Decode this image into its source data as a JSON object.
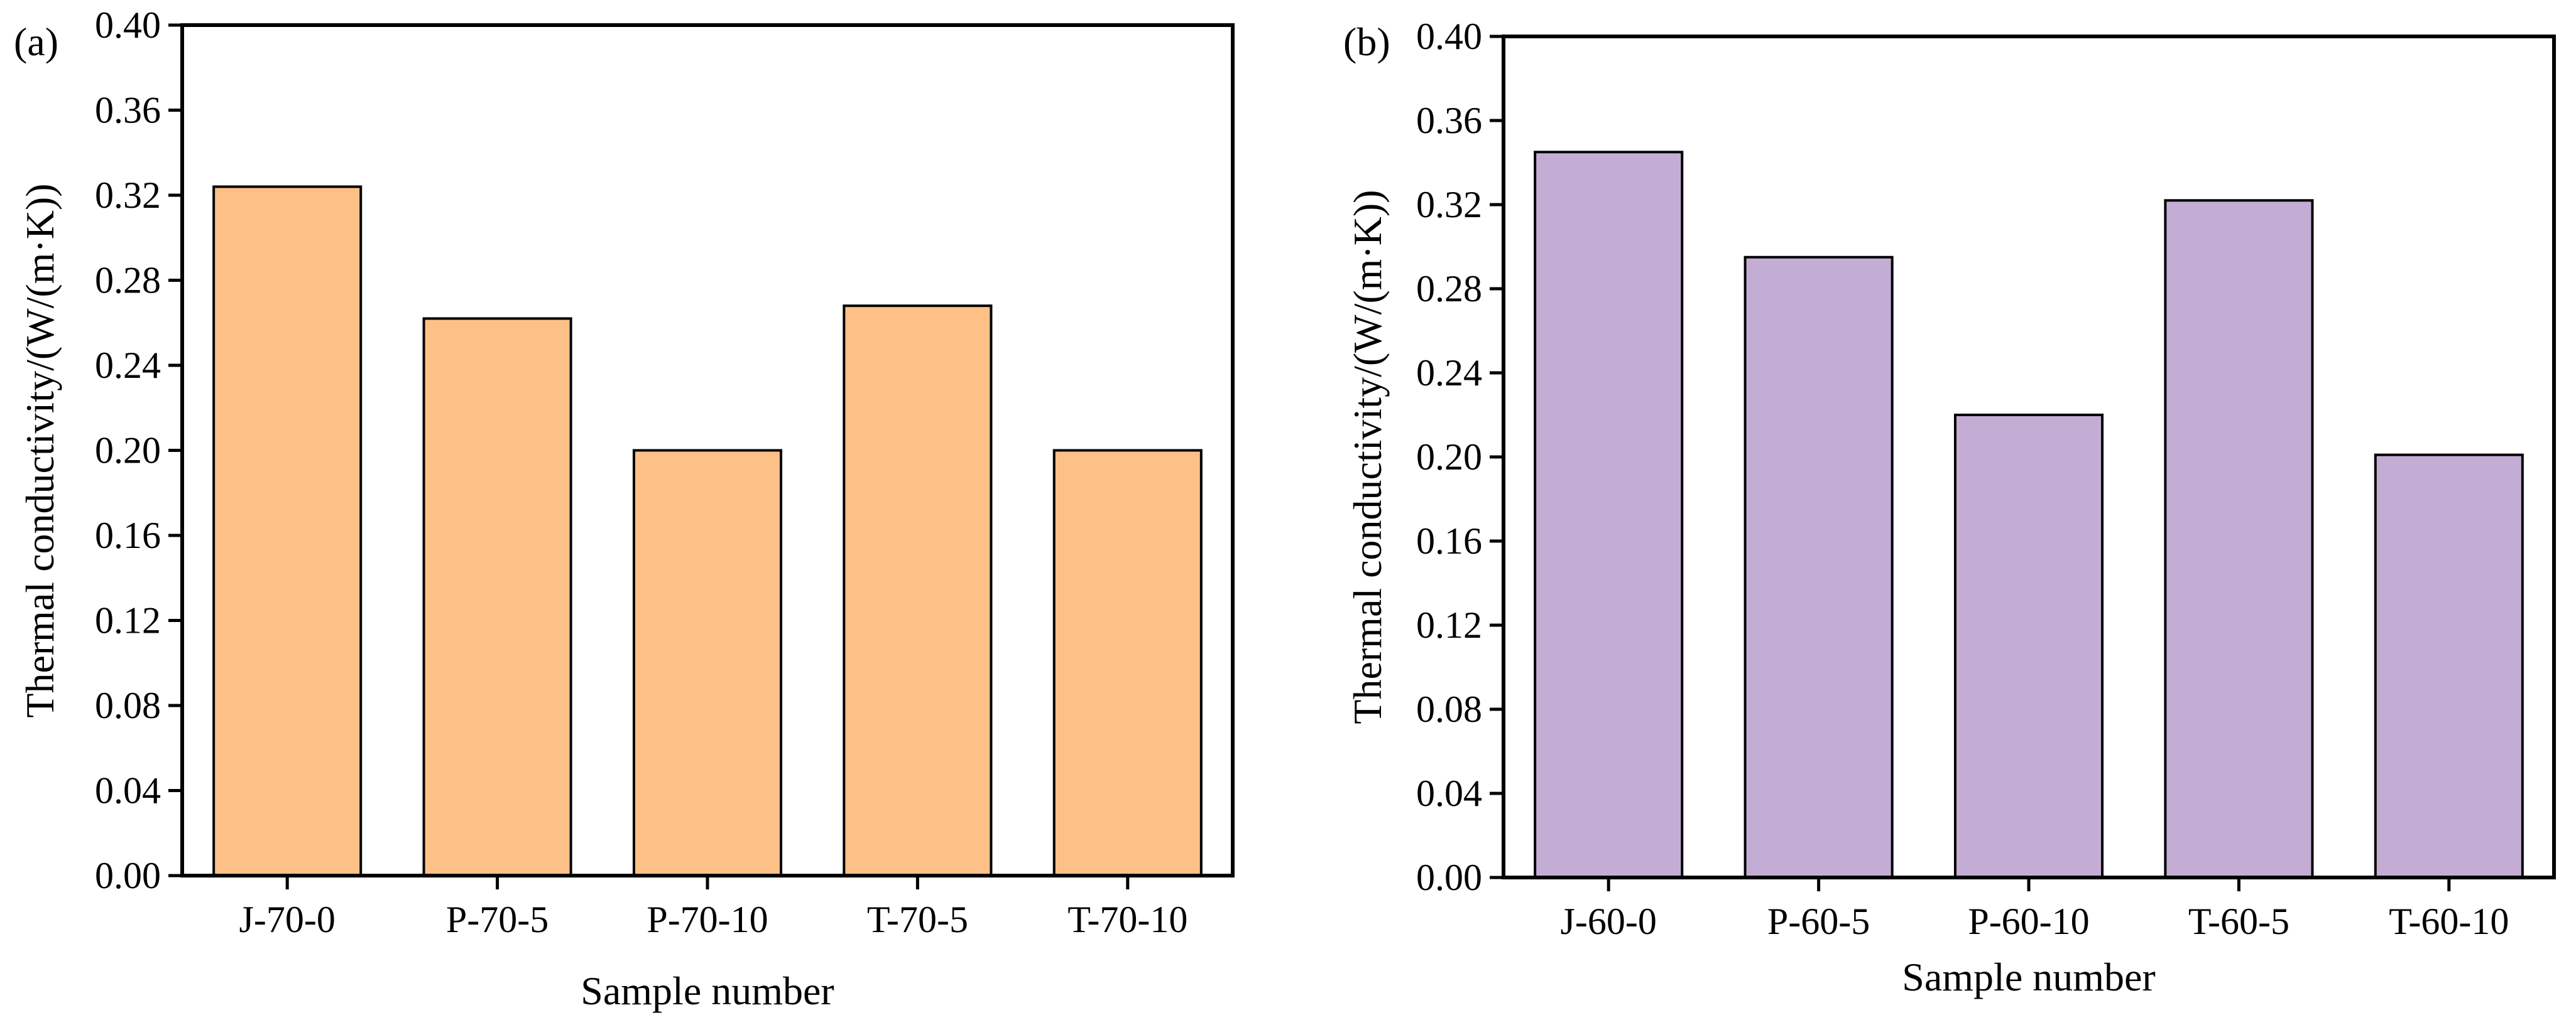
{
  "chart_data": [
    {
      "type": "bar",
      "panel_label": "(a)",
      "categories": [
        "J-70-0",
        "P-70-5",
        "P-70-10",
        "T-70-5",
        "T-70-10"
      ],
      "values": [
        0.324,
        0.262,
        0.2,
        0.268,
        0.2
      ],
      "xlabel": "Sample number",
      "ylabel": "Thermal conductivity/(W/(m·K))",
      "ylim": [
        0,
        0.4
      ],
      "yticks": [
        "0.00",
        "0.04",
        "0.08",
        "0.12",
        "0.16",
        "0.20",
        "0.24",
        "0.28",
        "0.32",
        "0.36",
        "0.40"
      ],
      "bar_color": "#FDC086",
      "grid": false
    },
    {
      "type": "bar",
      "panel_label": "(b)",
      "categories": [
        "J-60-0",
        "P-60-5",
        "P-60-10",
        "T-60-5",
        "T-60-10"
      ],
      "values": [
        0.345,
        0.295,
        0.22,
        0.322,
        0.201
      ],
      "xlabel": "Sample number",
      "ylabel": "Thermal conductivity/(W/(m·K))",
      "ylim": [
        0,
        0.4
      ],
      "yticks": [
        "0.00",
        "0.04",
        "0.08",
        "0.12",
        "0.16",
        "0.20",
        "0.24",
        "0.28",
        "0.32",
        "0.36",
        "0.40"
      ],
      "bar_color": "#C4ADD5",
      "grid": false
    }
  ]
}
